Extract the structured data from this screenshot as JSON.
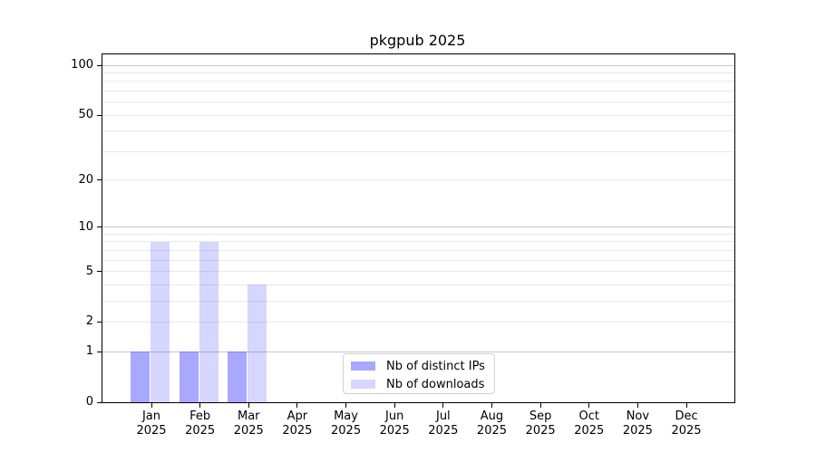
{
  "chart_data": {
    "type": "bar",
    "title": "pkgpub 2025",
    "x_months": [
      "Jan",
      "Feb",
      "Mar",
      "Apr",
      "May",
      "Jun",
      "Jul",
      "Aug",
      "Sep",
      "Oct",
      "Nov",
      "Dec"
    ],
    "x_year": "2025",
    "series": [
      {
        "name": "Nb of distinct IPs",
        "color": "rgba(0,0,255,0.34)",
        "values": [
          1,
          1,
          1,
          0,
          0,
          0,
          0,
          0,
          0,
          0,
          0,
          0
        ]
      },
      {
        "name": "Nb of downloads",
        "color": "rgba(0,0,255,0.16)",
        "values": [
          8,
          8,
          4,
          0,
          0,
          0,
          0,
          0,
          0,
          0,
          0,
          0
        ]
      }
    ],
    "scale": "log1p",
    "ylim": [
      0,
      116
    ],
    "y_ticks_labeled": [
      0,
      1,
      2,
      5,
      10,
      20,
      50,
      100
    ],
    "y_gridlines_major": [
      1,
      10,
      100
    ],
    "y_gridlines_minor": [
      2,
      3,
      4,
      5,
      6,
      7,
      8,
      9,
      20,
      30,
      40,
      50,
      60,
      70,
      80,
      90
    ],
    "grid": "horizontal",
    "legend_position": "inside-bottom-center",
    "axis_color": "#000000",
    "grid_major_color": "#c8c8c8",
    "grid_minor_color": "#e9e9e9"
  }
}
